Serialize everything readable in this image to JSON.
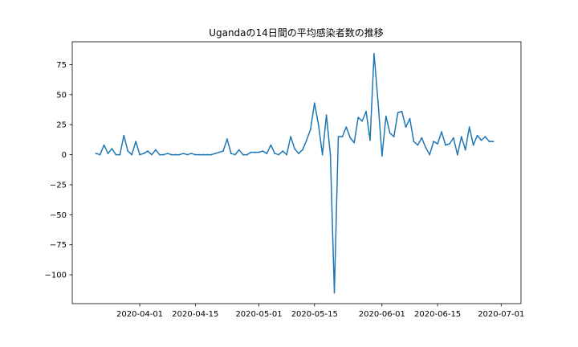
{
  "chart_data": {
    "type": "line",
    "title": "Ugandaの14日間の平均感染者数の推移",
    "xlabel": "",
    "ylabel": "",
    "x_start": "2020-03-21",
    "x_end": "2020-06-30",
    "xlim": [
      "2020-03-15",
      "2020-07-06"
    ],
    "ylim": [
      -124,
      94
    ],
    "x_ticks": [
      "2020-04-01",
      "2020-04-15",
      "2020-05-01",
      "2020-05-15",
      "2020-06-01",
      "2020-06-15",
      "2020-07-01"
    ],
    "y_ticks": [
      75,
      50,
      25,
      0,
      -25,
      -50,
      -75,
      -100
    ],
    "y_tick_labels": [
      "75",
      "50",
      "25",
      "0",
      "−25",
      "−50",
      "−75",
      "−100"
    ],
    "grid": false,
    "series": [
      {
        "color": "#1f77b4",
        "values": [
          1,
          0,
          8,
          1,
          5,
          0,
          0,
          16,
          3,
          0,
          11,
          0,
          1,
          3,
          0,
          4,
          0,
          0,
          1,
          0,
          0,
          0,
          1,
          0,
          1,
          0,
          0,
          0,
          0,
          0,
          1,
          2,
          3,
          13,
          1,
          0,
          4,
          0,
          0,
          2,
          2,
          2,
          3,
          1,
          8,
          1,
          0,
          3,
          0,
          15,
          5,
          1,
          4,
          12,
          21,
          43,
          25,
          0,
          33,
          0,
          -115,
          15,
          15,
          23,
          14,
          10,
          31,
          28,
          36,
          12,
          84,
          44,
          -1,
          32,
          18,
          15,
          35,
          36,
          23,
          30,
          11,
          8,
          14,
          6,
          0,
          11,
          9,
          19,
          8,
          9,
          14,
          0,
          15,
          4,
          23,
          8,
          16,
          12,
          15,
          11,
          11
        ]
      }
    ]
  }
}
